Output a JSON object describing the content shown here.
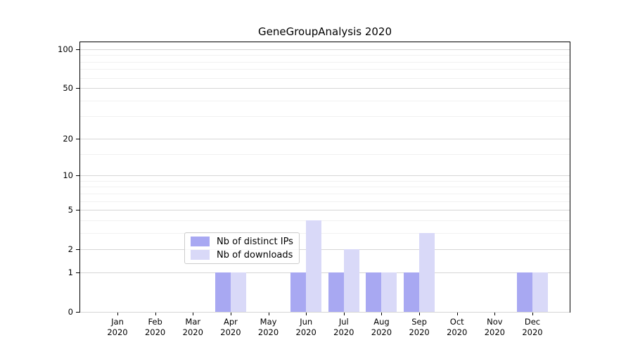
{
  "figure": {
    "background": "#ffffff"
  },
  "chart_data": {
    "type": "bar",
    "title": "GeneGroupAnalysis 2020",
    "categories": [
      "Jan",
      "Feb",
      "Mar",
      "Apr",
      "May",
      "Jun",
      "Jul",
      "Aug",
      "Sep",
      "Oct",
      "Nov",
      "Dec"
    ],
    "category_year": "2020",
    "series": [
      {
        "name": "Nb of distinct IPs",
        "color": "#a8a8f2",
        "values": [
          0,
          0,
          0,
          1,
          0,
          1,
          1,
          1,
          1,
          0,
          0,
          1
        ]
      },
      {
        "name": "Nb of downloads",
        "color": "#d9d9f8",
        "values": [
          0,
          0,
          0,
          1,
          0,
          4,
          2,
          1,
          3,
          0,
          0,
          1
        ]
      }
    ],
    "xlabel": "",
    "ylabel": "",
    "yscale": "log1p",
    "ylim": [
      0,
      113
    ],
    "yticks": [
      0,
      1,
      2,
      5,
      10,
      20,
      50,
      100
    ],
    "yticks_minor": [
      3,
      4,
      6,
      7,
      8,
      9,
      15,
      30,
      40,
      60,
      70,
      80,
      90
    ],
    "grid": "horizontal",
    "legend_position": "inside-lower-center",
    "colors": {
      "major_grid": "#d6d6d6",
      "minor_grid": "#f1f1f1",
      "spine": "#000000",
      "text": "#000000",
      "legend_border": "#cccccc",
      "legend_background": "rgba(255,255,255,0.8)"
    }
  }
}
